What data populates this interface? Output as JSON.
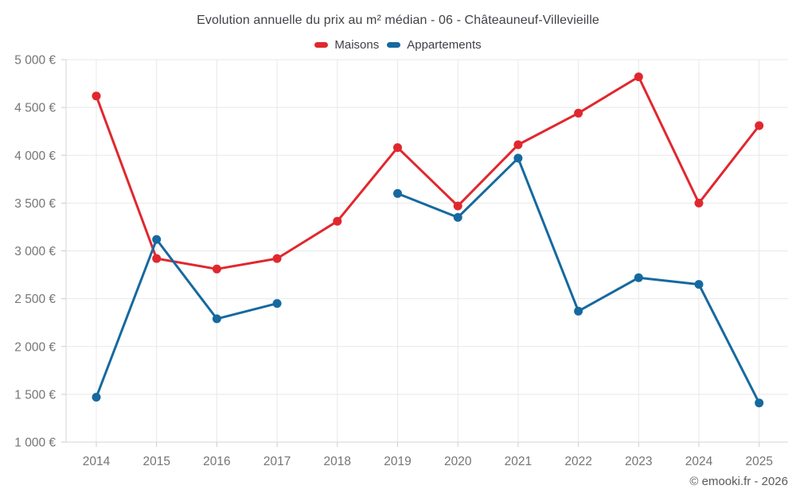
{
  "chart": {
    "title": "Evolution annuelle du prix au m² médian - 06 - Châteauneuf-Villevieille",
    "copyright": "© emooki.fr - 2026"
  },
  "chart_data": {
    "type": "line",
    "title": "Evolution annuelle du prix au m² médian - 06 - Châteauneuf-Villevieille",
    "x": [
      "2014",
      "2015",
      "2016",
      "2017",
      "2018",
      "2019",
      "2020",
      "2021",
      "2022",
      "2023",
      "2024",
      "2025"
    ],
    "series": [
      {
        "name": "Maisons",
        "color": "#e1272e",
        "values": [
          4620,
          2920,
          2810,
          2920,
          3310,
          4080,
          3470,
          4110,
          4440,
          4820,
          3500,
          4310
        ]
      },
      {
        "name": "Appartements",
        "color": "#16699f",
        "values": [
          1470,
          3120,
          2290,
          2450,
          null,
          3600,
          3350,
          3970,
          2370,
          2720,
          2650,
          1410
        ]
      }
    ],
    "ylim": [
      1000,
      5000
    ],
    "ytick_step": 500,
    "ytick_labels": [
      "1 000 €",
      "1 500 €",
      "2 000 €",
      "2 500 €",
      "3 000 €",
      "3 500 €",
      "4 000 €",
      "4 500 €",
      "5 000 €"
    ],
    "xlabel": "",
    "ylabel": "",
    "grid": true,
    "legend_position": "top-center",
    "copyright": "© emooki.fr - 2026"
  },
  "style": {
    "grid_color": "#e8e8e8",
    "axis_color": "#d6d6d6",
    "tick_color": "#cccccc",
    "tick_label_color": "#757575"
  }
}
